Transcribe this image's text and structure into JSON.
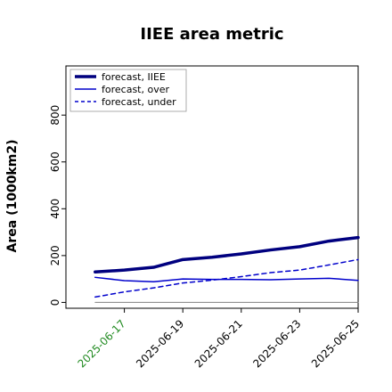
{
  "chart_data": {
    "type": "line",
    "title": "IIEE area metric",
    "xlabel": "",
    "ylabel": "Area (1000km2)",
    "x": [
      "2025-06-16",
      "2025-06-17",
      "2025-06-18",
      "2025-06-19",
      "2025-06-20",
      "2025-06-21",
      "2025-06-22",
      "2025-06-23",
      "2025-06-24",
      "2025-06-25"
    ],
    "xticks": [
      "2025-06-17",
      "2025-06-19",
      "2025-06-21",
      "2025-06-23",
      "2025-06-25"
    ],
    "highlight_tick": "2025-06-17",
    "xlim": [
      "2025-06-15",
      "2025-06-25"
    ],
    "ylim": [
      -25,
      1010
    ],
    "yticks": [
      0,
      200,
      400,
      600,
      800
    ],
    "grid": false,
    "legend_position": "top-left",
    "series": [
      {
        "name": "forecast, IIEE",
        "style": "solid-thick",
        "color": "#00007f",
        "values": [
          130,
          138,
          150,
          183,
          193,
          207,
          224,
          238,
          262,
          277
        ]
      },
      {
        "name": "forecast, over",
        "style": "solid",
        "color": "#0000cc",
        "values": [
          107,
          93,
          88,
          100,
          98,
          98,
          97,
          100,
          103,
          94
        ]
      },
      {
        "name": "forecast, under",
        "style": "dashed",
        "color": "#0000cc",
        "values": [
          23,
          45,
          62,
          83,
          95,
          110,
          127,
          138,
          160,
          183
        ]
      },
      {
        "name": "",
        "style": "baseline",
        "color": "#808080",
        "values": [
          0,
          0,
          0,
          0,
          0,
          0,
          0,
          0,
          0,
          0
        ]
      }
    ],
    "colors": {
      "tick_highlight": "#228b22",
      "axis": "#000000"
    }
  }
}
